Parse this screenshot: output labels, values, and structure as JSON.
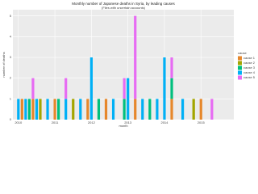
{
  "chart_data": {
    "type": "stacked_bar",
    "title": "Monthly number of Japanese deaths in Syria, by leading causes",
    "subtitle": "(Files with uncertain accounts)",
    "x_label": "month",
    "y_label": "number of deaths",
    "legend_title": "cause",
    "x": [
      2010.0,
      2010.1,
      2010.2,
      2010.3,
      2010.4,
      2010.5,
      2010.6,
      2010.8,
      2011.0,
      2011.1,
      2011.3,
      2011.5,
      2011.7,
      2011.9,
      2012.0,
      2012.2,
      2012.4,
      2012.6,
      2012.9,
      2013.0,
      2013.2,
      2013.4,
      2013.6,
      2013.8,
      2014.0,
      2014.2,
      2014.5,
      2014.8,
      2015.0,
      2015.3
    ],
    "series": [
      {
        "name": "cause 1",
        "color": "#e6872b",
        "values": [
          0,
          1,
          0,
          0,
          1,
          0,
          0,
          0,
          1,
          0,
          0,
          0,
          0,
          1,
          0,
          0,
          1,
          0,
          0,
          0,
          1,
          0,
          0,
          0,
          0,
          1,
          0,
          0,
          1,
          0
        ]
      },
      {
        "name": "cause 2",
        "color": "#a3a500",
        "values": [
          0,
          0,
          0,
          0,
          0,
          0,
          1,
          0,
          0,
          0,
          0,
          1,
          0,
          0,
          0,
          0,
          0,
          0,
          0,
          0,
          0,
          0,
          0,
          0,
          0,
          0,
          0,
          1,
          0,
          0
        ]
      },
      {
        "name": "cause 3",
        "color": "#00bf7d",
        "values": [
          0,
          0,
          0,
          1,
          0,
          0,
          0,
          0,
          0,
          1,
          0,
          0,
          0,
          0,
          0,
          1,
          0,
          0,
          1,
          0,
          0,
          0,
          1,
          0,
          0,
          1,
          0,
          0,
          0,
          0
        ]
      },
      {
        "name": "cause 4",
        "color": "#00b0f6",
        "values": [
          1,
          0,
          1,
          0,
          0,
          1,
          0,
          1,
          0,
          0,
          1,
          0,
          1,
          0,
          3,
          0,
          0,
          1,
          0,
          2,
          0,
          1,
          0,
          1,
          3,
          0,
          1,
          0,
          0,
          0
        ]
      },
      {
        "name": "cause 5",
        "color": "#e76bf3",
        "values": [
          0,
          0,
          0,
          0,
          1,
          0,
          0,
          0,
          0,
          0,
          1,
          0,
          0,
          0,
          0,
          0,
          0,
          0,
          1,
          0,
          4,
          0,
          0,
          0,
          0,
          1,
          0,
          0,
          0,
          1
        ]
      }
    ],
    "xlim": [
      2009.85,
      2015.9
    ],
    "xticks": [
      2010,
      2011,
      2012,
      2013,
      2014,
      2015
    ],
    "ylim": [
      0,
      5.3
    ],
    "yticks": [
      0,
      1,
      2,
      3,
      4,
      5
    ],
    "grid": true,
    "legend": "right"
  }
}
